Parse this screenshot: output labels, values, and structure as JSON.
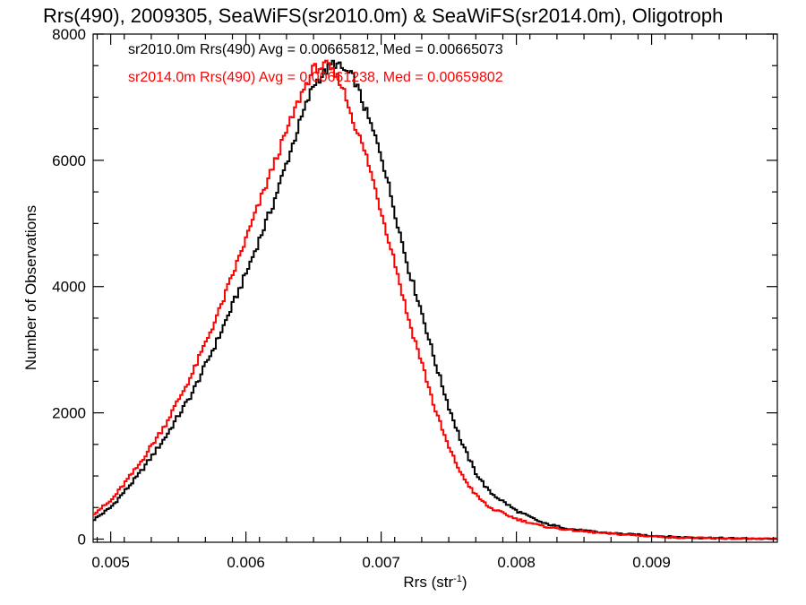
{
  "chart_data": {
    "type": "histogram-step",
    "title": "Rrs(490), 2009305, SeaWiFS(sr2010.0m) & SeaWiFS(sr2014.0m), Oligotroph",
    "xlabel_main": "Rrs (str",
    "xlabel_sup": "-1",
    "xlabel_end": ")",
    "ylabel": "Number of Observations",
    "xlim": [
      0.00487,
      0.00993
    ],
    "ylim": [
      -50,
      8000
    ],
    "x_ticks": [
      0.005,
      0.006,
      0.007,
      0.008,
      0.009
    ],
    "x_tick_labels": [
      "0.005",
      "0.006",
      "0.007",
      "0.008",
      "0.009"
    ],
    "y_ticks": [
      0,
      2000,
      4000,
      6000,
      8000
    ],
    "y_tick_labels": [
      "0",
      "2000",
      "4000",
      "6000",
      "8000"
    ],
    "annotations": [
      "sr2010.0m Rrs(490) Avg = 0.00665812, Med = 0.00665073",
      "sr2014.0m Rrs(490) Avg = 0.00661238, Med = 0.00659802"
    ],
    "series": [
      {
        "color": "#000000",
        "points": [
          [
            0.00487,
            300
          ],
          [
            0.005,
            500
          ],
          [
            0.0052,
            1000
          ],
          [
            0.0054,
            1600
          ],
          [
            0.0056,
            2300
          ],
          [
            0.0058,
            3200
          ],
          [
            0.006,
            4200
          ],
          [
            0.0062,
            5300
          ],
          [
            0.0064,
            6600
          ],
          [
            0.0065,
            7200
          ],
          [
            0.00665,
            7550
          ],
          [
            0.0068,
            7300
          ],
          [
            0.0069,
            6700
          ],
          [
            0.007,
            6100
          ],
          [
            0.0071,
            5200
          ],
          [
            0.0072,
            4300
          ],
          [
            0.0073,
            3600
          ],
          [
            0.0074,
            2800
          ],
          [
            0.0075,
            2100
          ],
          [
            0.0076,
            1500
          ],
          [
            0.0077,
            1050
          ],
          [
            0.0078,
            750
          ],
          [
            0.008,
            450
          ],
          [
            0.0082,
            250
          ],
          [
            0.0084,
            160
          ],
          [
            0.0086,
            110
          ],
          [
            0.0088,
            80
          ],
          [
            0.009,
            55
          ],
          [
            0.0092,
            30
          ],
          [
            0.0094,
            20
          ],
          [
            0.0096,
            10
          ],
          [
            0.00993,
            0
          ]
        ]
      },
      {
        "color": "#ff0000",
        "points": [
          [
            0.00487,
            400
          ],
          [
            0.005,
            600
          ],
          [
            0.0052,
            1150
          ],
          [
            0.0054,
            1800
          ],
          [
            0.0056,
            2600
          ],
          [
            0.0058,
            3600
          ],
          [
            0.006,
            4750
          ],
          [
            0.0062,
            5900
          ],
          [
            0.0064,
            7000
          ],
          [
            0.0065,
            7450
          ],
          [
            0.0066,
            7500
          ],
          [
            0.0067,
            7250
          ],
          [
            0.0068,
            6600
          ],
          [
            0.0069,
            6000
          ],
          [
            0.007,
            5200
          ],
          [
            0.0071,
            4400
          ],
          [
            0.0072,
            3500
          ],
          [
            0.0073,
            2800
          ],
          [
            0.0074,
            2050
          ],
          [
            0.0075,
            1450
          ],
          [
            0.0076,
            1000
          ],
          [
            0.0077,
            700
          ],
          [
            0.0078,
            500
          ],
          [
            0.008,
            320
          ],
          [
            0.0082,
            200
          ],
          [
            0.0084,
            140
          ],
          [
            0.0086,
            100
          ],
          [
            0.0088,
            70
          ],
          [
            0.009,
            45
          ],
          [
            0.0092,
            25
          ],
          [
            0.0094,
            15
          ],
          [
            0.0096,
            8
          ],
          [
            0.00993,
            0
          ]
        ]
      }
    ],
    "step_width": 1.65e-05
  }
}
